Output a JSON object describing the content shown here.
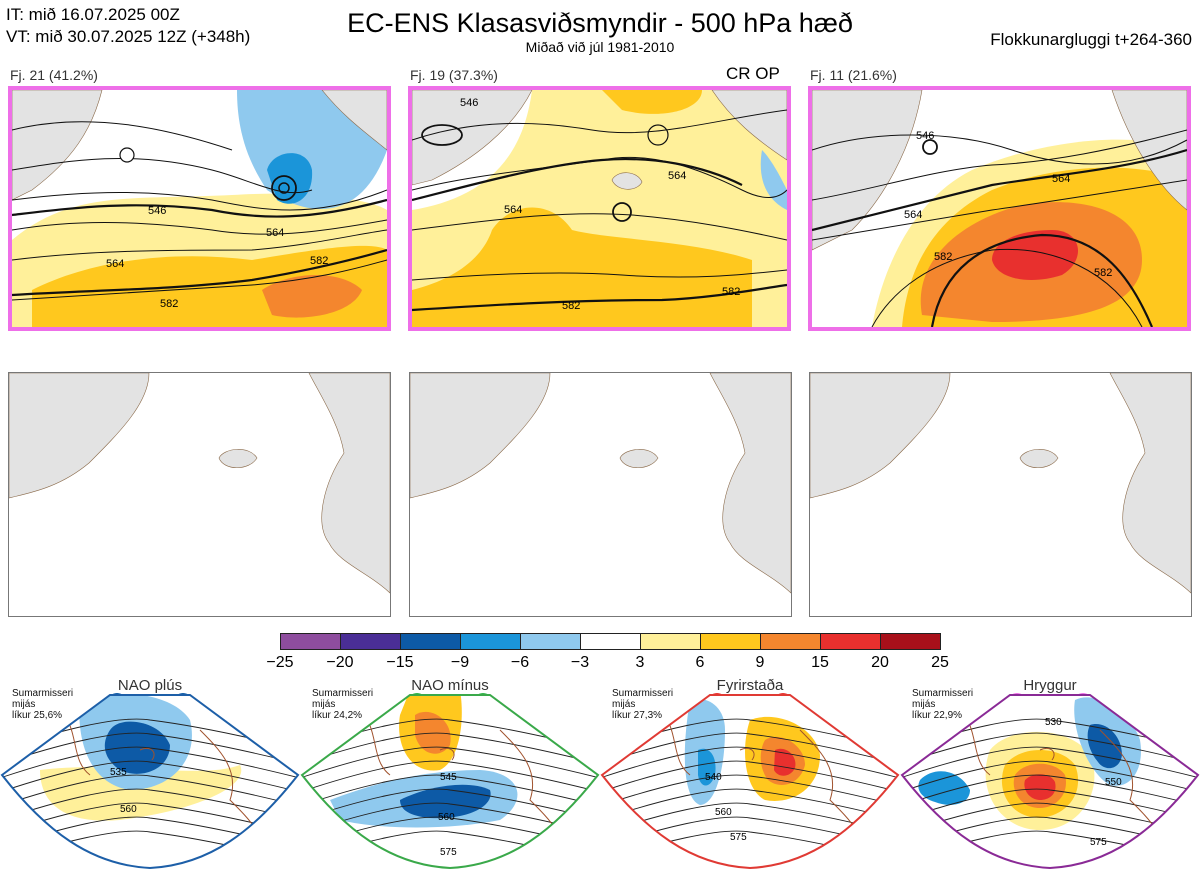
{
  "header": {
    "it_line": "IT: mið 16.07.2025 00Z",
    "vt_line": "VT: mið 30.07.2025 12Z  (+348h)",
    "title": "EC-ENS Klasasviðsmyndir - 500 hPa hæð",
    "subtitle": "Miðað við júl 1981-2010",
    "window": "Flokkunargluggi t+264-360"
  },
  "clusters": [
    {
      "label": "Fj. 21 (41.2%)",
      "contours": [
        "546",
        "564",
        "582",
        "564",
        "582"
      ],
      "marker": null
    },
    {
      "label": "Fj. 19 (37.3%)",
      "contours": [
        "546",
        "564",
        "564",
        "582",
        "582"
      ],
      "marker": "CR OP"
    },
    {
      "label": "Fj. 11 (21.6%)",
      "contours": [
        "546",
        "564",
        "564",
        "582",
        "582"
      ],
      "marker": null
    }
  ],
  "colorbar": {
    "ticks": [
      "−25",
      "−20",
      "−15",
      "−9",
      "−6",
      "−3",
      "3",
      "6",
      "9",
      "15",
      "20",
      "25"
    ],
    "colors": [
      "#8e4d9e",
      "#4a2e96",
      "#0d5aa6",
      "#1b95d9",
      "#8fc9ee",
      "#ffffff",
      "#fff09a",
      "#ffc81e",
      "#f4862e",
      "#e8302e",
      "#a8101a"
    ]
  },
  "regimes": [
    {
      "name": "NAO plús",
      "info": [
        "Sumarmisseri",
        "mijás",
        "líkur 25,6%"
      ],
      "dot_color": "#0d5aa6",
      "border_color": "#1d5fa8",
      "contours": [
        "535",
        "560"
      ]
    },
    {
      "name": "NAO mínus",
      "info": [
        "Sumarmisseri",
        "mijás",
        "líkur 24,2%"
      ],
      "dot_color": "#2eb347",
      "border_color": "#3aa94a",
      "contours": [
        "545",
        "560",
        "575"
      ]
    },
    {
      "name": "Fyrirstaða",
      "info": [
        "Sumarmisseri",
        "mijás",
        "líkur 27,3%"
      ],
      "dot_color": "#e8302e",
      "border_color": "#e03a34",
      "contours": [
        "540",
        "560",
        "575"
      ]
    },
    {
      "name": "Hryggur",
      "info": [
        "Sumarmisseri",
        "mijás",
        "líkur 22,9%"
      ],
      "dot_color": "#ee6fe8",
      "border_color": "#8a2a96",
      "contours": [
        "530",
        "550",
        "575"
      ]
    }
  ]
}
